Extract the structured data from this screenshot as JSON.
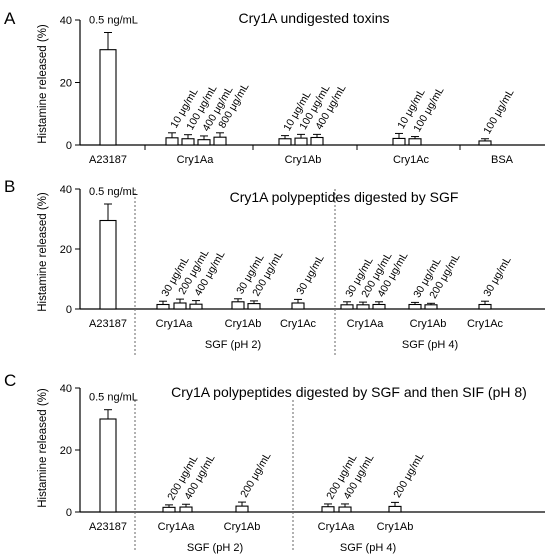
{
  "chart_data": [
    {
      "panel": "A",
      "type": "bar",
      "title": "Cry1A undigested toxins",
      "ylabel": "Histamine released (%)",
      "xlabel": "",
      "ylim": [
        0,
        40
      ],
      "yticks": [
        0,
        20,
        40
      ],
      "grid": false,
      "categories": [
        "A23187",
        "Cry1Aa",
        "Cry1Ab",
        "Cry1Ac",
        "BSA"
      ],
      "bars": [
        {
          "category": "A23187",
          "label": "0.5 ng/mL",
          "value": 30.5,
          "error": 5.5
        },
        {
          "category": "Cry1Aa",
          "label": "10 μg/mL",
          "value": 2.3,
          "error": 1.6
        },
        {
          "category": "Cry1Aa",
          "label": "100 μg/mL",
          "value": 2.0,
          "error": 1.3
        },
        {
          "category": "Cry1Aa",
          "label": "400 μg/mL",
          "value": 1.7,
          "error": 1.2
        },
        {
          "category": "Cry1Aa",
          "label": "800 μg/mL",
          "value": 2.5,
          "error": 1.4
        },
        {
          "category": "Cry1Ab",
          "label": "10 μg/mL",
          "value": 2.0,
          "error": 1.0
        },
        {
          "category": "Cry1Ab",
          "label": "100 μg/mL",
          "value": 2.2,
          "error": 1.2
        },
        {
          "category": "Cry1Ab",
          "label": "400 μg/mL",
          "value": 2.4,
          "error": 1.0
        },
        {
          "category": "Cry1Ac",
          "label": "10 μg/mL",
          "value": 2.1,
          "error": 1.6
        },
        {
          "category": "Cry1Ac",
          "label": "100 μg/mL",
          "value": 2.0,
          "error": 0.7
        },
        {
          "category": "BSA",
          "label": "100 μg/mL",
          "value": 1.3,
          "error": 0.7
        }
      ],
      "groups": []
    },
    {
      "panel": "B",
      "type": "bar",
      "title": "Cry1A polypeptides digested by SGF",
      "ylabel": "Histamine released (%)",
      "xlabel": "",
      "ylim": [
        0,
        40
      ],
      "yticks": [
        0,
        20,
        40
      ],
      "grid": false,
      "categories": [
        "A23187",
        "Cry1Aa",
        "Cry1Ab",
        "Cry1Ac",
        "Cry1Aa",
        "Cry1Ab",
        "Cry1Ac"
      ],
      "bars": [
        {
          "category": "A23187",
          "label": "0.5 ng/mL",
          "value": 29.5,
          "error": 5.5
        },
        {
          "category": "Cry1Aa",
          "label": "30 μg/mL",
          "value": 1.5,
          "error": 1.1
        },
        {
          "category": "Cry1Aa",
          "label": "200 μg/mL",
          "value": 2.0,
          "error": 1.3
        },
        {
          "category": "Cry1Aa",
          "label": "400 μg/mL",
          "value": 1.6,
          "error": 1.2
        },
        {
          "category": "Cry1Ab",
          "label": "30 μg/mL",
          "value": 2.4,
          "error": 1.0
        },
        {
          "category": "Cry1Ab",
          "label": "200 μg/mL",
          "value": 1.8,
          "error": 0.9
        },
        {
          "category": "Cry1Ac",
          "label": "30 μg/mL",
          "value": 2.0,
          "error": 1.2
        },
        {
          "category": "Cry1Aa",
          "label": "30 μg/mL",
          "value": 1.4,
          "error": 1.0
        },
        {
          "category": "Cry1Aa",
          "label": "200 μg/mL",
          "value": 1.4,
          "error": 0.9
        },
        {
          "category": "Cry1Aa",
          "label": "400 μg/mL",
          "value": 1.5,
          "error": 0.9
        },
        {
          "category": "Cry1Ab",
          "label": "30 μg/mL",
          "value": 1.5,
          "error": 0.7
        },
        {
          "category": "Cry1Ab",
          "label": "200 μg/mL",
          "value": 1.4,
          "error": 0.5
        },
        {
          "category": "Cry1Ac",
          "label": "30 μg/mL",
          "value": 1.5,
          "error": 1.1
        }
      ],
      "groups": [
        "SGF (pH 2)",
        "SGF (pH 4)"
      ]
    },
    {
      "panel": "C",
      "type": "bar",
      "title": "Cry1A polypeptides digested by SGF and then SIF (pH 8)",
      "ylabel": "Histamine released (%)",
      "xlabel": "",
      "ylim": [
        0,
        40
      ],
      "yticks": [
        0,
        20,
        40
      ],
      "grid": false,
      "categories": [
        "A23187",
        "Cry1Aa",
        "Cry1Ab",
        "Cry1Aa",
        "Cry1Ab"
      ],
      "bars": [
        {
          "category": "A23187",
          "label": "0.5 ng/mL",
          "value": 30.0,
          "error": 3.0
        },
        {
          "category": "Cry1Aa",
          "label": "200 μg/mL",
          "value": 1.5,
          "error": 0.8
        },
        {
          "category": "Cry1Aa",
          "label": "400 μg/mL",
          "value": 1.6,
          "error": 0.9
        },
        {
          "category": "Cry1Ab",
          "label": "200 μg/mL",
          "value": 1.9,
          "error": 1.3
        },
        {
          "category": "Cry1Aa",
          "label": "200 μg/mL",
          "value": 1.7,
          "error": 0.9
        },
        {
          "category": "Cry1Aa",
          "label": "400 μg/mL",
          "value": 1.6,
          "error": 1.0
        },
        {
          "category": "Cry1Ab",
          "label": "200 μg/mL",
          "value": 1.8,
          "error": 1.3
        }
      ],
      "groups": [
        "SGF (pH 2)",
        "SGF (pH 4)"
      ]
    }
  ]
}
